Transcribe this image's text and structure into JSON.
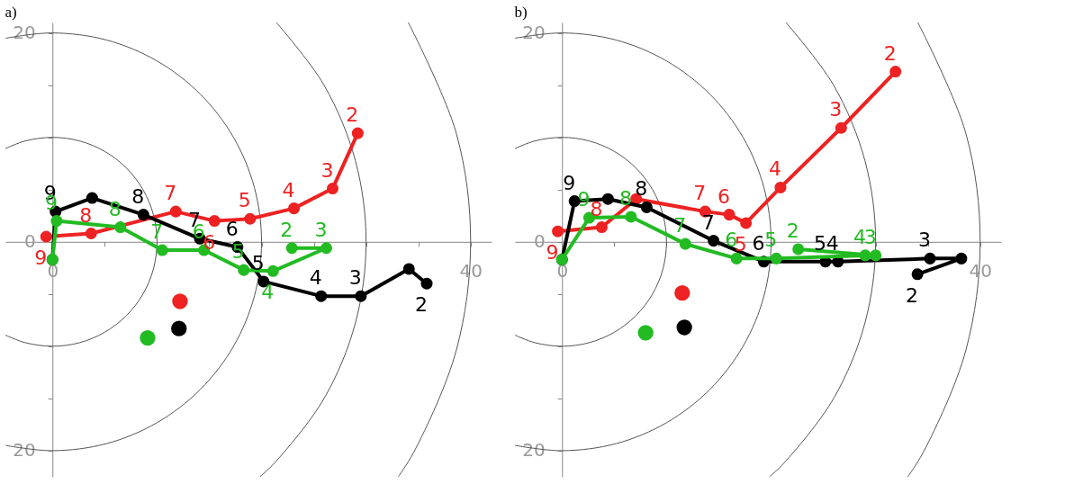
{
  "chart_data": [
    {
      "type": "line",
      "title": "a)",
      "xlim": [
        -4.5,
        42
      ],
      "ylim": [
        -22.5,
        21
      ],
      "marker": "circle",
      "line_style": "solid",
      "xticks": [
        0,
        {
          "value": 5,
          "label": null
        },
        {
          "value": 10,
          "label": null
        },
        {
          "value": 15,
          "label": null
        },
        {
          "value": 20,
          "label": null
        },
        {
          "value": 25,
          "label": null
        },
        {
          "value": 30,
          "label": null
        },
        {
          "value": 35,
          "label": null
        },
        40
      ],
      "yticks": [
        {
          "value": -20,
          "label": "20"
        },
        {
          "value": -15,
          "label": null
        },
        {
          "value": -10,
          "label": null
        },
        {
          "value": -5,
          "label": null
        },
        0,
        {
          "value": 5,
          "label": null
        },
        {
          "value": 10,
          "label": null
        },
        {
          "value": 15,
          "label": null
        },
        20
      ],
      "series": [
        {
          "color": "#555555",
          "marker": "none",
          "x": [
            -4.5,
            -2.59,
            0,
            2.59,
            5,
            7.07,
            8.66,
            9.66,
            10,
            9.66,
            8.66,
            7.07,
            5,
            2.59,
            0,
            -2.59,
            -4.5
          ],
          "values": [
            8.93,
            9.66,
            10,
            9.66,
            8.66,
            7.07,
            5,
            2.59,
            0,
            -2.59,
            -5,
            -7.07,
            -8.66,
            -9.66,
            -10,
            -9.66,
            -8.93
          ]
        },
        {
          "color": "#555555",
          "marker": "none",
          "x": [
            -4.5,
            0,
            5.18,
            10,
            14.14,
            17.32,
            19.32,
            20,
            19.32,
            17.32,
            14.14,
            10,
            5.18,
            0,
            -4.5
          ],
          "values": [
            19.49,
            20,
            19.32,
            17.32,
            14.14,
            10,
            5.18,
            0,
            -5.18,
            -10,
            -14.14,
            -17.32,
            -19.32,
            -20,
            -19.49
          ]
        },
        {
          "color": "#555555",
          "marker": "none",
          "x": [
            21.42,
            25.98,
            28.98,
            30,
            28.98,
            25.98,
            21.21,
            19.84
          ],
          "values": [
            21,
            15,
            7.76,
            0,
            -7.76,
            -15,
            -21.21,
            -22.5
          ]
        },
        {
          "color": "#555555",
          "marker": "none",
          "x": [
            34.04,
            38.64,
            40,
            38.64,
            34.64,
            33.07
          ],
          "values": [
            21,
            10.35,
            0,
            -10.35,
            -20,
            -22.5
          ]
        },
        {
          "color": "#ee2222",
          "x": [
            29.2,
            26.8,
            23.1,
            18.9,
            15.5,
            11.8,
            3.7,
            -0.6
          ],
          "values": [
            10.4,
            5.1,
            3.2,
            2.2,
            2.0,
            2.9,
            0.8,
            0.5
          ]
        },
        {
          "color": "#000000",
          "x": [
            35.8,
            34.1,
            29.5,
            25.7,
            20.2,
            17.7,
            14.1,
            8.7,
            3.8,
            0.3,
            0
          ],
          "values": [
            -4.0,
            -2.6,
            -5.2,
            -5.2,
            -3.8,
            -0.5,
            0.3,
            2.6,
            4.2,
            2.9,
            -1.7
          ]
        },
        {
          "color": "#22bb22",
          "x": [
            22.9,
            26.2,
            21.1,
            18.3,
            14.5,
            10.5,
            6.5,
            0.4,
            0
          ],
          "values": [
            -0.6,
            -0.6,
            -2.8,
            -2.7,
            -0.8,
            -0.8,
            1.4,
            2.0,
            -1.7
          ]
        },
        {
          "type": "scatter",
          "color": "#ee2222",
          "x": [
            12.2
          ],
          "values": [
            -5.7
          ]
        },
        {
          "type": "scatter",
          "color": "#000000",
          "x": [
            12.1
          ],
          "values": [
            -8.3
          ]
        },
        {
          "type": "scatter",
          "color": "#22bb22",
          "x": [
            9.1
          ],
          "values": [
            -9.2
          ]
        }
      ],
      "annotations": [
        {
          "text": "2",
          "x": 29.2,
          "y": 10.4
        },
        {
          "text": "3",
          "x": 26.8,
          "y": 5.1
        },
        {
          "text": "4",
          "x": 23.1,
          "y": 3.2
        },
        {
          "text": "5",
          "x": 18.9,
          "y": 2.2
        },
        {
          "text": "6",
          "x": 15.5,
          "y": 2.0
        },
        {
          "text": "7",
          "x": 11.8,
          "y": 2.9
        },
        {
          "text": "8",
          "x": 3.7,
          "y": 0.8
        },
        {
          "text": "9",
          "x": -0.6,
          "y": 0.5
        },
        {
          "text": "2",
          "x": 35.8,
          "y": -4.0
        },
        {
          "text": "3",
          "x": 29.5,
          "y": -5.2
        },
        {
          "text": "4",
          "x": 25.7,
          "y": -5.2
        },
        {
          "text": "5",
          "x": 20.2,
          "y": -3.8
        },
        {
          "text": "6",
          "x": 17.7,
          "y": -0.5
        },
        {
          "text": "7",
          "x": 14.1,
          "y": 0.3
        },
        {
          "text": "8",
          "x": 8.7,
          "y": 2.6
        },
        {
          "text": "9",
          "x": 0.3,
          "y": 2.9
        },
        {
          "text": "2",
          "x": 22.9,
          "y": -0.6
        },
        {
          "text": "3",
          "x": 26.2,
          "y": -0.6
        },
        {
          "text": "4",
          "x": 21.1,
          "y": -2.8
        },
        {
          "text": "5",
          "x": 18.3,
          "y": -2.7
        },
        {
          "text": "6",
          "x": 14.5,
          "y": -0.8
        },
        {
          "text": "7",
          "x": 10.5,
          "y": -0.8
        },
        {
          "text": "8",
          "x": 6.5,
          "y": 1.4
        },
        {
          "text": "9",
          "x": 0.4,
          "y": 2.0
        }
      ]
    },
    {
      "type": "line",
      "title": "b)",
      "xlim": [
        -4.5,
        42
      ],
      "ylim": [
        -22.5,
        21
      ],
      "marker": "circle",
      "line_style": "solid",
      "xticks": [
        0,
        {
          "value": 5,
          "label": null
        },
        {
          "value": 10,
          "label": null
        },
        {
          "value": 15,
          "label": null
        },
        {
          "value": 20,
          "label": null
        },
        {
          "value": 25,
          "label": null
        },
        {
          "value": 30,
          "label": null
        },
        {
          "value": 35,
          "label": null
        },
        40
      ],
      "yticks": [
        {
          "value": -20,
          "label": "20"
        },
        {
          "value": -15,
          "label": null
        },
        {
          "value": -10,
          "label": null
        },
        {
          "value": -5,
          "label": null
        },
        0,
        {
          "value": 5,
          "label": null
        },
        {
          "value": 10,
          "label": null
        },
        {
          "value": 15,
          "label": null
        },
        20
      ],
      "series": [
        {
          "color": "#555555",
          "marker": "none",
          "x": [
            -4.5,
            -2.59,
            0,
            2.59,
            5,
            7.07,
            8.66,
            9.66,
            10,
            9.66,
            8.66,
            7.07,
            5,
            2.59,
            0,
            -2.59,
            -4.5
          ],
          "values": [
            8.93,
            9.66,
            10,
            9.66,
            8.66,
            7.07,
            5,
            2.59,
            0,
            -2.59,
            -5,
            -7.07,
            -8.66,
            -9.66,
            -10,
            -9.66,
            -8.93
          ]
        },
        {
          "color": "#555555",
          "marker": "none",
          "x": [
            -4.5,
            0,
            5.18,
            10,
            14.14,
            17.32,
            19.32,
            20,
            19.32,
            17.32,
            14.14,
            10,
            5.18,
            0,
            -4.5
          ],
          "values": [
            19.49,
            20,
            19.32,
            17.32,
            14.14,
            10,
            5.18,
            0,
            -5.18,
            -10,
            -14.14,
            -17.32,
            -19.32,
            -20,
            -19.49
          ]
        },
        {
          "color": "#555555",
          "marker": "none",
          "x": [
            21.42,
            25.98,
            28.98,
            30,
            28.98,
            25.98,
            21.21,
            19.84
          ],
          "values": [
            21,
            15,
            7.76,
            0,
            -7.76,
            -15,
            -21.21,
            -22.5
          ]
        },
        {
          "color": "#555555",
          "marker": "none",
          "x": [
            34.04,
            38.64,
            40,
            38.64,
            34.64,
            33.07
          ],
          "values": [
            21,
            10.35,
            0,
            -10.35,
            -20,
            -22.5
          ]
        },
        {
          "color": "#ee2222",
          "x": [
            31.9,
            26.7,
            20.9,
            17.6,
            16.0,
            13.7,
            7.1,
            3.8,
            -0.4
          ],
          "values": [
            16.3,
            10.9,
            5.2,
            1.8,
            2.6,
            2.9,
            4.1,
            1.4,
            1.0
          ]
        },
        {
          "color": "#000000",
          "x": [
            34.0,
            38.2,
            35.2,
            26.4,
            25.2,
            19.3,
            14.5,
            8.1,
            4.4,
            1.2,
            0
          ],
          "values": [
            -3.1,
            -1.6,
            -1.6,
            -1.9,
            -1.9,
            -1.9,
            0.1,
            3.3,
            4.1,
            3.9,
            -1.7
          ]
        },
        {
          "color": "#22bb22",
          "x": [
            22.6,
            30.0,
            29.0,
            20.5,
            16.7,
            11.8,
            6.6,
            2.6,
            0
          ],
          "values": [
            -0.7,
            -1.3,
            -1.3,
            -1.6,
            -1.6,
            -0.2,
            2.4,
            2.3,
            -1.7
          ]
        },
        {
          "type": "scatter",
          "color": "#ee2222",
          "x": [
            11.5
          ],
          "values": [
            -4.9
          ]
        },
        {
          "type": "scatter",
          "color": "#000000",
          "x": [
            11.7
          ],
          "values": [
            -8.2
          ]
        },
        {
          "type": "scatter",
          "color": "#22bb22",
          "x": [
            8.0
          ],
          "values": [
            -8.7
          ]
        }
      ],
      "annotations": [
        {
          "text": "2",
          "x": 31.9,
          "y": 16.3
        },
        {
          "text": "3",
          "x": 26.7,
          "y": 10.9
        },
        {
          "text": "4",
          "x": 20.9,
          "y": 5.2
        },
        {
          "text": "5",
          "x": 17.6,
          "y": 1.8
        },
        {
          "text": "6",
          "x": 16.0,
          "y": 2.6
        },
        {
          "text": "7",
          "x": 13.7,
          "y": 2.9
        },
        {
          "text": "8",
          "x": 3.8,
          "y": 1.4
        },
        {
          "text": "9",
          "x": -0.4,
          "y": 1.0
        },
        {
          "text": "2",
          "x": 34.0,
          "y": -3.1
        },
        {
          "text": "3",
          "x": 35.2,
          "y": -1.6
        },
        {
          "text": "4",
          "x": 26.4,
          "y": -1.9
        },
        {
          "text": "5",
          "x": 25.2,
          "y": -1.9
        },
        {
          "text": "6",
          "x": 19.3,
          "y": -1.9
        },
        {
          "text": "7",
          "x": 14.5,
          "y": 0.1
        },
        {
          "text": "8",
          "x": 8.1,
          "y": 3.3
        },
        {
          "text": "9",
          "x": 1.2,
          "y": 3.9
        },
        {
          "text": "2",
          "x": 22.6,
          "y": -0.7
        },
        {
          "text": "3",
          "x": 30.0,
          "y": -1.3
        },
        {
          "text": "4",
          "x": 29.0,
          "y": -1.3
        },
        {
          "text": "5",
          "x": 20.5,
          "y": -1.6
        },
        {
          "text": "6",
          "x": 16.7,
          "y": -1.6
        },
        {
          "text": "7",
          "x": 11.8,
          "y": -0.2
        },
        {
          "text": "8",
          "x": 6.6,
          "y": 2.4
        },
        {
          "text": "9",
          "x": 2.6,
          "y": 2.3
        }
      ]
    }
  ]
}
